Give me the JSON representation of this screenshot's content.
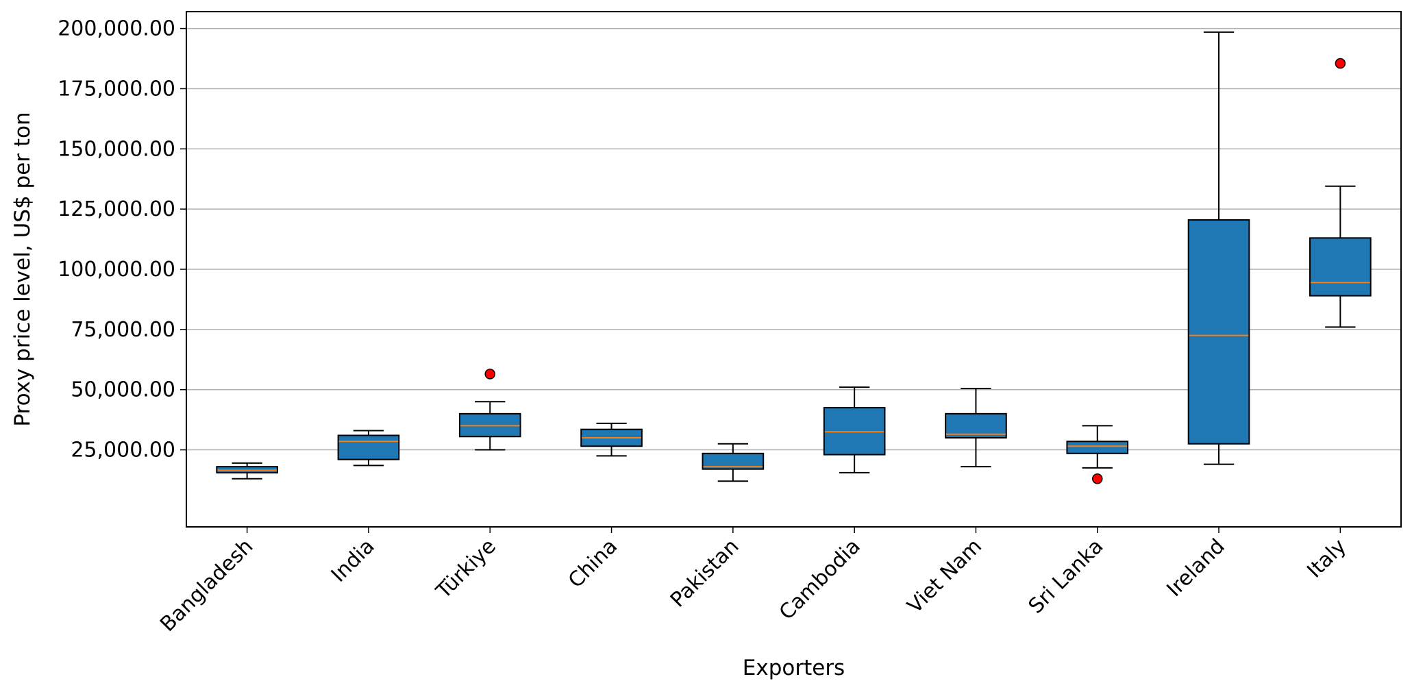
{
  "chart_data": {
    "type": "box",
    "title": "",
    "xlabel": "Exporters",
    "ylabel": "Proxy price level, US$ per ton",
    "ylim": [
      -7000,
      207000
    ],
    "yticks": [
      25000,
      50000,
      75000,
      100000,
      125000,
      150000,
      175000,
      200000
    ],
    "ytick_labels": [
      "25,000.00",
      "50,000.00",
      "75,000.00",
      "100,000.00",
      "125,000.00",
      "150,000.00",
      "175,000.00",
      "200,000.00"
    ],
    "grid": "y",
    "categories": [
      "Bangladesh",
      "India",
      "Türkiye",
      "China",
      "Pakistan",
      "Cambodia",
      "Viet Nam",
      "Sri Lanka",
      "Ireland",
      "Italy"
    ],
    "boxes": [
      {
        "whisker_low": 13000,
        "q1": 15500,
        "median": 16500,
        "q3": 18000,
        "whisker_high": 19500,
        "outliers": []
      },
      {
        "whisker_low": 18500,
        "q1": 21000,
        "median": 28500,
        "q3": 31000,
        "whisker_high": 33000,
        "outliers": []
      },
      {
        "whisker_low": 25000,
        "q1": 30500,
        "median": 35000,
        "q3": 40000,
        "whisker_high": 45000,
        "outliers": [
          56500
        ]
      },
      {
        "whisker_low": 22500,
        "q1": 26500,
        "median": 30000,
        "q3": 33500,
        "whisker_high": 36000,
        "outliers": []
      },
      {
        "whisker_low": 12000,
        "q1": 17000,
        "median": 18000,
        "q3": 23500,
        "whisker_high": 27500,
        "outliers": []
      },
      {
        "whisker_low": 15500,
        "q1": 23000,
        "median": 32500,
        "q3": 42500,
        "whisker_high": 51000,
        "outliers": []
      },
      {
        "whisker_low": 18000,
        "q1": 30000,
        "median": 31500,
        "q3": 40000,
        "whisker_high": 50500,
        "outliers": []
      },
      {
        "whisker_low": 17500,
        "q1": 23500,
        "median": 26500,
        "q3": 28500,
        "whisker_high": 35000,
        "outliers": [
          13000
        ]
      },
      {
        "whisker_low": 19000,
        "q1": 27500,
        "median": 72500,
        "q3": 120500,
        "whisker_high": 198500,
        "outliers": []
      },
      {
        "whisker_low": 76000,
        "q1": 89000,
        "median": 94500,
        "q3": 113000,
        "whisker_high": 134500,
        "outliers": [
          185500
        ]
      }
    ],
    "colors": {
      "box_fill": "#1f77b4",
      "median": "#ff7f0e",
      "outlier": "#ff0000",
      "grid": "#b0b0b0"
    }
  }
}
